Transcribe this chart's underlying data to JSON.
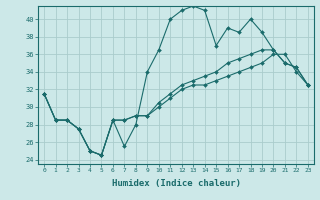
{
  "xlabel": "Humidex (Indice chaleur)",
  "background_color": "#cce8e8",
  "grid_color": "#aacccc",
  "line_color": "#1a6b6b",
  "xlim": [
    -0.5,
    23.5
  ],
  "ylim": [
    23.5,
    41.5
  ],
  "yticks": [
    24,
    26,
    28,
    30,
    32,
    34,
    36,
    38,
    40
  ],
  "xticks": [
    0,
    1,
    2,
    3,
    4,
    5,
    6,
    7,
    8,
    9,
    10,
    11,
    12,
    13,
    14,
    15,
    16,
    17,
    18,
    19,
    20,
    21,
    22,
    23
  ],
  "line1_x": [
    0,
    1,
    2,
    3,
    4,
    5,
    6,
    7,
    8,
    9,
    10,
    11,
    12,
    13,
    14,
    15,
    16,
    17,
    18,
    19,
    20,
    21,
    22,
    23
  ],
  "line1_y": [
    31.5,
    28.5,
    28.5,
    27.5,
    25,
    24.5,
    28.5,
    28.5,
    29,
    29,
    30,
    31,
    32,
    32.5,
    32.5,
    33,
    33.5,
    34,
    34.5,
    35,
    36,
    36,
    34,
    32.5
  ],
  "line2_x": [
    0,
    1,
    2,
    3,
    4,
    5,
    6,
    7,
    8,
    9,
    10,
    11,
    12,
    13,
    14,
    15,
    16,
    17,
    18,
    19,
    20,
    21,
    22,
    23
  ],
  "line2_y": [
    31.5,
    28.5,
    28.5,
    27.5,
    25,
    24.5,
    28.5,
    25.5,
    28,
    34,
    36.5,
    40,
    41,
    41.5,
    41,
    37,
    39,
    38.5,
    40,
    38.5,
    36.5,
    35,
    34.5,
    32.5
  ],
  "line3_x": [
    0,
    1,
    2,
    3,
    4,
    5,
    6,
    7,
    8,
    9,
    10,
    11,
    12,
    13,
    14,
    15,
    16,
    17,
    18,
    19,
    20,
    21,
    22,
    23
  ],
  "line3_y": [
    31.5,
    28.5,
    28.5,
    27.5,
    25,
    24.5,
    28.5,
    28.5,
    29,
    29,
    30.5,
    31.5,
    32.5,
    33,
    33.5,
    34,
    35,
    35.5,
    36,
    36.5,
    36.5,
    35,
    34.5,
    32.5
  ]
}
